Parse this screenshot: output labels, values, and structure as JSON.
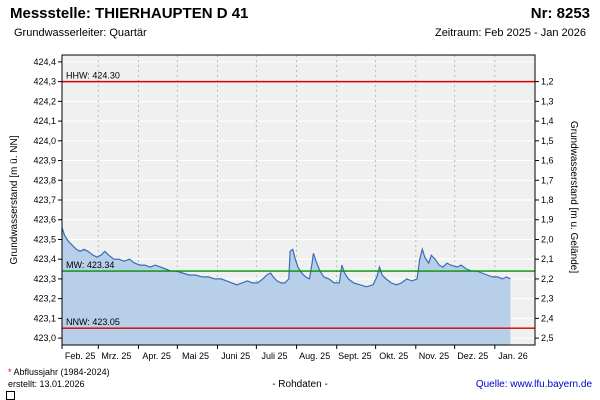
{
  "header": {
    "station_label": "Messstelle: THIERHAUPTEN D 41",
    "number_label": "Nr: 8253",
    "aquifer_label": "Grundwasserleiter: Quartär",
    "period_label": "Zeitraum: Feb 2025 - Jan 2026"
  },
  "chart_data": {
    "type": "area",
    "title": "",
    "ylabel_left": "Grundwasserstand [m ü. NN]",
    "ylabel_right": "Grundwasserstand [m u. Gelände]",
    "ylim_left": [
      423.0,
      424.4
    ],
    "left_axis_ticks": [
      "424,4",
      "424,3",
      "424,2",
      "424,1",
      "424,0",
      "423,9",
      "423,8",
      "423,7",
      "423,6",
      "423,5",
      "423,4",
      "423,3",
      "423,2",
      "423,1",
      "423,0"
    ],
    "right_axis_ticks": [
      "1,2",
      "1,3",
      "1,4",
      "1,5",
      "1,6",
      "1,7",
      "1,8",
      "1,9",
      "2,0",
      "2,1",
      "2,2",
      "2,3",
      "2,4",
      "2,5"
    ],
    "x_tick_labels": [
      "Feb. 25",
      "Mrz. 25",
      "Apr. 25",
      "Mai 25",
      "Juni 25",
      "Juli 25",
      "Aug. 25",
      "Sept. 25",
      "Okt. 25",
      "Nov. 25",
      "Dez. 25",
      "Jan. 26"
    ],
    "month_start_days": [
      0,
      28,
      59,
      89,
      120,
      150,
      181,
      212,
      242,
      273,
      303,
      334
    ],
    "x_range_days": [
      0,
      365
    ],
    "reference_lines": [
      {
        "name": "HHW",
        "label": "HHW: 424.30",
        "value": 424.3,
        "color": "#d40000"
      },
      {
        "name": "MW",
        "label": "MW: 423.34",
        "value": 423.34,
        "color": "#009000"
      },
      {
        "name": "NNW",
        "label": "NNW: 423.05",
        "value": 423.05,
        "color": "#d40000"
      }
    ],
    "series": [
      {
        "name": "Grundwasserstand Rohdaten",
        "x_days": [
          0,
          2,
          5,
          8,
          11,
          14,
          17,
          20,
          24,
          27,
          30,
          33,
          36,
          40,
          44,
          48,
          52,
          56,
          60,
          64,
          68,
          72,
          76,
          80,
          84,
          88,
          93,
          98,
          103,
          108,
          113,
          118,
          123,
          127,
          131,
          135,
          139,
          143,
          147,
          151,
          155,
          158,
          161,
          163,
          166,
          169,
          172,
          175,
          176,
          178,
          180,
          182,
          185,
          188,
          191,
          193,
          194,
          196,
          199,
          202,
          206,
          210,
          214,
          216,
          218,
          221,
          225,
          230,
          235,
          240,
          243,
          245,
          247,
          250,
          254,
          258,
          262,
          266,
          270,
          274,
          276,
          278,
          280,
          283,
          285,
          288,
          291,
          294,
          297,
          300,
          305,
          308,
          312,
          316,
          320,
          324,
          328,
          332,
          336,
          340,
          343,
          346
        ],
        "values": [
          423.56,
          423.52,
          423.49,
          423.47,
          423.45,
          423.44,
          423.45,
          423.44,
          423.42,
          423.41,
          423.42,
          423.44,
          423.42,
          423.4,
          423.4,
          423.39,
          423.4,
          423.38,
          423.37,
          423.37,
          423.36,
          423.37,
          423.36,
          423.35,
          423.34,
          423.34,
          423.33,
          423.32,
          423.32,
          423.31,
          423.31,
          423.3,
          423.3,
          423.29,
          423.28,
          423.27,
          423.28,
          423.29,
          423.28,
          423.28,
          423.3,
          423.32,
          423.33,
          423.31,
          423.29,
          423.28,
          423.28,
          423.3,
          423.44,
          423.45,
          423.4,
          423.36,
          423.33,
          423.31,
          423.3,
          423.38,
          423.43,
          423.39,
          423.34,
          423.31,
          423.3,
          423.28,
          423.28,
          423.37,
          423.33,
          423.3,
          423.28,
          423.27,
          423.26,
          423.27,
          423.31,
          423.36,
          423.32,
          423.3,
          423.28,
          423.27,
          423.28,
          423.3,
          423.29,
          423.3,
          423.4,
          423.45,
          423.41,
          423.38,
          423.42,
          423.4,
          423.37,
          423.36,
          423.38,
          423.37,
          423.36,
          423.37,
          423.35,
          423.34,
          423.34,
          423.33,
          423.32,
          423.31,
          423.31,
          423.3,
          423.31,
          423.3
        ]
      }
    ],
    "colors": {
      "line": "#3a6cb8",
      "fill": "#b7cfe9",
      "plot_bg": "#f0f0f0",
      "grid_h": "#ffffff",
      "grid_v": "#a7c7a7",
      "frame": "#000000"
    }
  },
  "footer": {
    "note_mark": "*",
    "note_text": " Abflussjahr (1984-2024)",
    "created": "erstellt: 13.01.2026",
    "center": "- Rohdaten -",
    "source": "Quelle: www.lfu.bayern.de"
  }
}
